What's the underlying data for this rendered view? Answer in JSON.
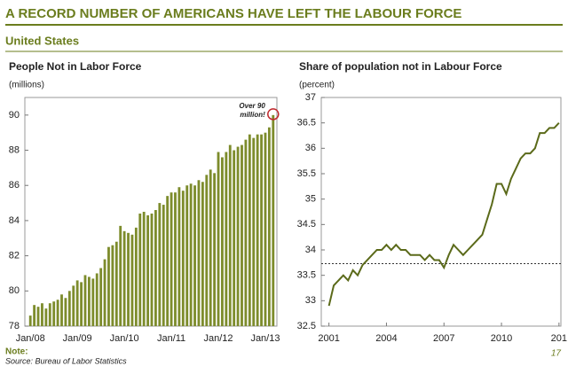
{
  "header": {
    "title": "A RECORD NUMBER OF AMERICANS HAVE LEFT THE LABOUR FORCE",
    "subtitle": "United States"
  },
  "chart_data": [
    {
      "type": "bar",
      "title": "People Not in Labor Force",
      "y_label": "(millions)",
      "categories": [
        "Jan/08",
        null,
        null,
        null,
        null,
        null,
        null,
        null,
        null,
        null,
        null,
        null,
        "Jan/09",
        null,
        null,
        null,
        null,
        null,
        null,
        null,
        null,
        null,
        null,
        null,
        "Jan/10",
        null,
        null,
        null,
        null,
        null,
        null,
        null,
        null,
        null,
        null,
        null,
        "Jan/11",
        null,
        null,
        null,
        null,
        null,
        null,
        null,
        null,
        null,
        null,
        null,
        "Jan/12",
        null,
        null,
        null,
        null,
        null,
        null,
        null,
        null,
        null,
        null,
        null,
        "Jan/13",
        null,
        null
      ],
      "values": [
        78.6,
        79.2,
        79.1,
        79.3,
        79.0,
        79.3,
        79.4,
        79.5,
        79.8,
        79.6,
        80.0,
        80.3,
        80.6,
        80.5,
        80.9,
        80.8,
        80.7,
        81.0,
        81.3,
        81.8,
        82.5,
        82.6,
        82.8,
        83.7,
        83.4,
        83.3,
        83.2,
        83.6,
        84.4,
        84.5,
        84.3,
        84.4,
        84.6,
        85.0,
        84.9,
        85.4,
        85.6,
        85.6,
        85.9,
        85.7,
        86.0,
        86.1,
        86.0,
        86.3,
        86.2,
        86.6,
        86.9,
        86.7,
        87.9,
        87.6,
        87.9,
        88.3,
        88.0,
        88.2,
        88.3,
        88.6,
        88.9,
        88.7,
        88.9,
        88.9,
        89.0,
        89.3,
        90.0
      ],
      "color": "#7d8c2c",
      "ylim": [
        78,
        91
      ],
      "yticks": [
        78,
        80,
        82,
        84,
        86,
        88,
        90
      ],
      "annotation": [
        "Over 90",
        "million!"
      ]
    },
    {
      "type": "line",
      "title": "Share of population not in Labour Force",
      "y_label": "(percent)",
      "x": [
        2001,
        2001.25,
        2001.5,
        2001.75,
        2002,
        2002.25,
        2002.5,
        2002.75,
        2003,
        2003.25,
        2003.5,
        2003.75,
        2004,
        2004.25,
        2004.5,
        2004.75,
        2005,
        2005.25,
        2005.5,
        2005.75,
        2006,
        2006.25,
        2006.5,
        2006.75,
        2007,
        2007.25,
        2007.5,
        2007.75,
        2008,
        2008.25,
        2008.5,
        2008.75,
        2009,
        2009.25,
        2009.5,
        2009.75,
        2010,
        2010.25,
        2010.5,
        2010.75,
        2011,
        2011.25,
        2011.5,
        2011.75,
        2012,
        2012.25,
        2012.5,
        2012.75,
        2013
      ],
      "values": [
        32.9,
        33.3,
        33.4,
        33.5,
        33.4,
        33.6,
        33.5,
        33.7,
        33.8,
        33.9,
        34.0,
        34.0,
        34.1,
        34.0,
        34.1,
        34.0,
        34.0,
        33.9,
        33.9,
        33.9,
        33.8,
        33.9,
        33.8,
        33.8,
        33.65,
        33.9,
        34.1,
        34.0,
        33.9,
        34.0,
        34.1,
        34.2,
        34.3,
        34.6,
        34.9,
        35.3,
        35.3,
        35.1,
        35.4,
        35.6,
        35.8,
        35.9,
        35.9,
        36.0,
        36.3,
        36.3,
        36.4,
        36.4,
        36.5
      ],
      "color": "#5b6a1a",
      "ref_line": 33.73,
      "xlim": [
        2000.6,
        2013.1
      ],
      "xticks": [
        2001,
        2004,
        2007,
        2010,
        {
          "value": 2013,
          "label": "201"
        }
      ],
      "ylim": [
        32.5,
        37
      ],
      "yticks": [
        32.5,
        33,
        33.5,
        34,
        34.5,
        35,
        35.5,
        36,
        36.5,
        37
      ]
    }
  ],
  "footer": {
    "note": "Note:",
    "source": "Source: Bureau of Labor Statistics",
    "page": "17"
  }
}
